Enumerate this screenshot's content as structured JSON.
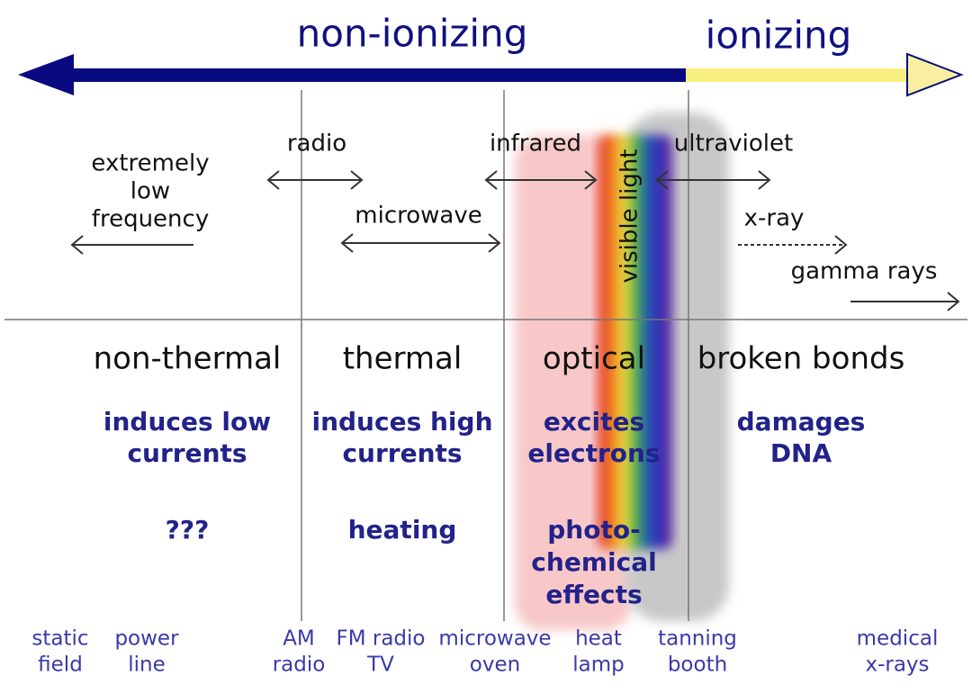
{
  "header": {
    "left": "non-ionizing",
    "right": "ionizing"
  },
  "bands": [
    {
      "lines": [
        "extremely",
        "low",
        "frequency"
      ]
    },
    {
      "lines": [
        "radio"
      ]
    },
    {
      "lines": [
        "microwave"
      ]
    },
    {
      "lines": [
        "infrared"
      ]
    },
    {
      "lines": [
        "visible light"
      ]
    },
    {
      "lines": [
        "ultraviolet"
      ]
    },
    {
      "lines": [
        "x-ray"
      ]
    },
    {
      "lines": [
        "gamma rays"
      ]
    }
  ],
  "columns": [
    {
      "title": "non-thermal",
      "effect": [
        "induces low",
        "currents"
      ],
      "result": [
        "???"
      ]
    },
    {
      "title": "thermal",
      "effect": [
        "induces high",
        "currents"
      ],
      "result": [
        "heating"
      ]
    },
    {
      "title": "optical",
      "effect": [
        "excites",
        "electrons"
      ],
      "result": [
        "photo-",
        "chemical",
        "effects"
      ]
    },
    {
      "title": "broken bonds",
      "effect": [
        "damages",
        "DNA"
      ],
      "result": []
    }
  ],
  "sources": [
    {
      "lines": [
        "static",
        "field"
      ]
    },
    {
      "lines": [
        "power",
        "line"
      ]
    },
    {
      "lines": [
        "AM",
        "radio"
      ]
    },
    {
      "lines": [
        "FM radio",
        "TV"
      ]
    },
    {
      "lines": [
        "microwave",
        "oven"
      ]
    },
    {
      "lines": [
        "heat",
        "lamp"
      ]
    },
    {
      "lines": [
        "tanning",
        "booth"
      ]
    },
    {
      "lines": [
        "medical",
        "x-rays"
      ]
    }
  ]
}
